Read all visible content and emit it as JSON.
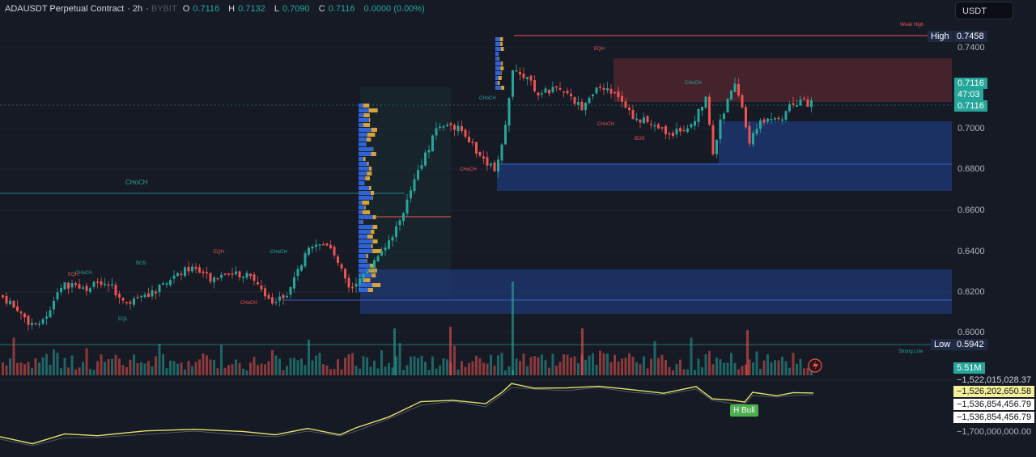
{
  "header": {
    "symbol": "ADAUSDT Perpetual Contract",
    "interval": "2h",
    "source": "BYBIT",
    "open_label": "O",
    "open": "0.7116",
    "high_label": "H",
    "high": "0.7132",
    "low_label": "L",
    "low": "0.7090",
    "close_label": "C",
    "close": "0.7116",
    "change": "0.0000 (0.00%)"
  },
  "currency_button": "USDT",
  "price_axis": {
    "ticks": [
      "0.7400",
      "0.7000",
      "0.6800",
      "0.6600",
      "0.6400",
      "0.6200",
      "0.6000"
    ],
    "high_label": "High",
    "high_value": "0.7458",
    "low_label": "Low",
    "low_value": "0.5942",
    "last_price": "0.7116",
    "countdown": "47:03",
    "last_price_2": "0.7116",
    "volume_value": "5.51M"
  },
  "indicator_axis": {
    "values": [
      "−1,522,015,028.37",
      "−1,526,202,650.58",
      "−1,536,854,456.79",
      "−1,536,854,456.79",
      "−1,700,000,000.00"
    ]
  },
  "annotations": {
    "weak_high": "Weak High",
    "strong_low": "Strong Low",
    "choch_big": "CHoCH",
    "eqh_top": "EQH",
    "choch_top": "CHoCH",
    "choch_mid": "CHoCH",
    "choch_mid2": "CHoCH",
    "bos_mid": "BOS",
    "choch_left1": "CHoCH",
    "choch_left2": "CHoCH",
    "choch_left3": "CHoCH",
    "choch_left4": "CHoCH",
    "bos_left": "BOS",
    "eqh_left": "EQH",
    "eqh_left2": "EQH",
    "eql_left": "EQL",
    "h_bull": "H Bull"
  },
  "colors": {
    "background": "#161a25",
    "bull": "#26a69a",
    "bear": "#ef5350",
    "demand_zone": "#1e3a78",
    "supply_zone": "#5a2a33",
    "indicator_line": "#e2e26a"
  }
}
